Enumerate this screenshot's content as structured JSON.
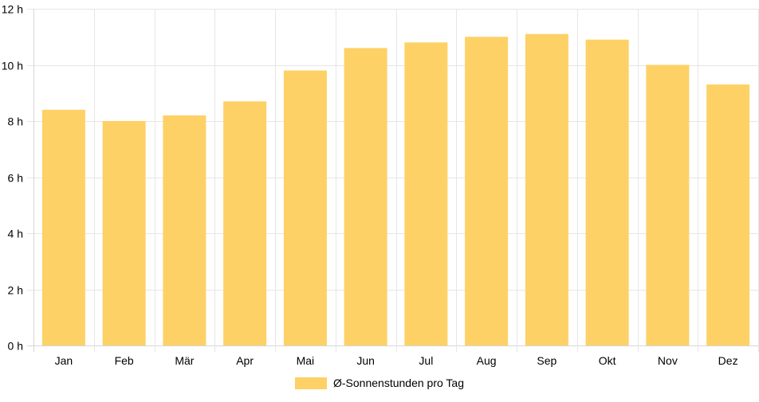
{
  "chart_data": {
    "type": "bar",
    "categories": [
      "Jan",
      "Feb",
      "Mär",
      "Apr",
      "Mai",
      "Jun",
      "Jul",
      "Aug",
      "Sep",
      "Okt",
      "Nov",
      "Dez"
    ],
    "series": [
      {
        "name": "Ø-Sonnenstunden pro Tag",
        "values": [
          8.4,
          8.0,
          8.2,
          8.7,
          9.8,
          10.6,
          10.8,
          11.0,
          11.1,
          10.9,
          10.0,
          9.3
        ],
        "color": "#fdd166"
      }
    ],
    "ylim": [
      0,
      12
    ],
    "yticks": [
      0,
      2,
      4,
      6,
      8,
      10,
      12
    ],
    "ytick_suffix": " h",
    "grid": true,
    "legend_position": "bottom"
  }
}
